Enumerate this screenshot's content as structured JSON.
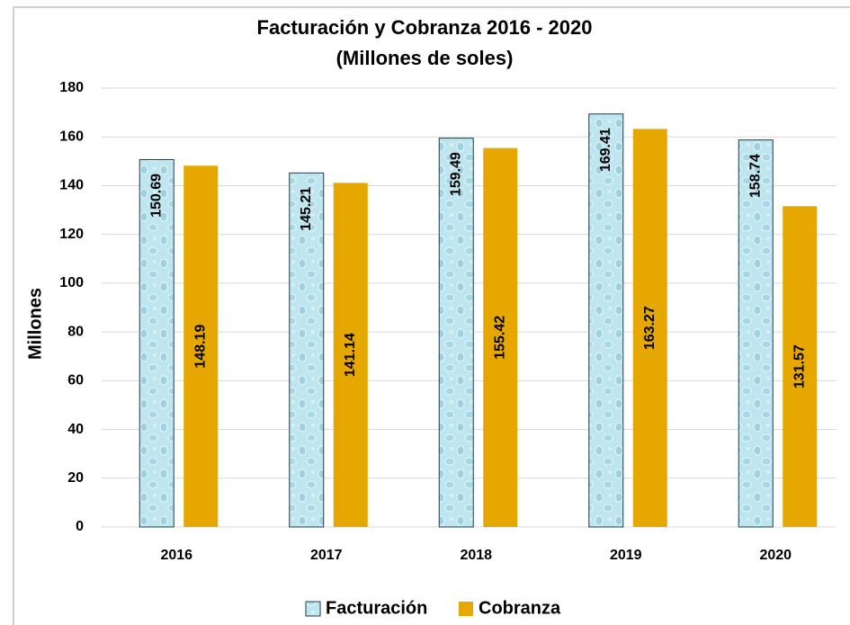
{
  "chart_data": {
    "type": "bar",
    "title": "Facturación  y Cobranza  2016 - 2020",
    "subtitle": "(Millones de soles)",
    "y_label": "Millones",
    "categories": [
      "2016",
      "2017",
      "2018",
      "2019",
      "2020"
    ],
    "series": [
      {
        "name": "Facturación",
        "color": "#bfe6ef",
        "values": [
          150.69,
          145.21,
          159.49,
          169.41,
          158.74
        ]
      },
      {
        "name": "Cobranza",
        "color": "#e6a800",
        "values": [
          148.19,
          141.14,
          155.42,
          163.27,
          131.57
        ]
      }
    ],
    "ylim": [
      0,
      180
    ],
    "yticks": [
      0,
      20,
      40,
      60,
      80,
      100,
      120,
      140,
      160,
      180
    ],
    "grid": true,
    "legend": "bottom"
  }
}
